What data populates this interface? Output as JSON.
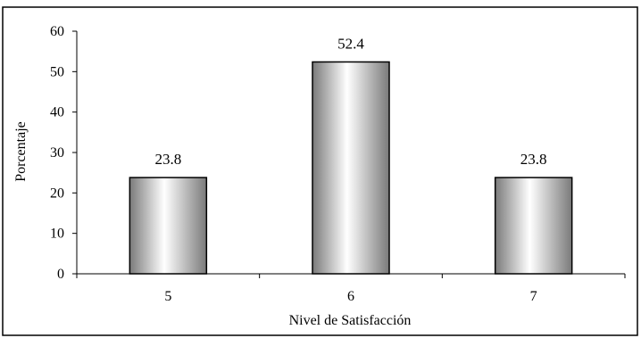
{
  "chart_data": {
    "type": "bar",
    "title": "",
    "xlabel": "Nivel de Satisfacción",
    "ylabel": "Porcentaje",
    "categories": [
      "5",
      "6",
      "7"
    ],
    "values": [
      23.8,
      52.4,
      23.8
    ],
    "value_labels": [
      "23.8",
      "52.4",
      "23.8"
    ],
    "ylim": [
      0,
      60
    ],
    "yticks": [
      0,
      10,
      20,
      30,
      40,
      50,
      60
    ],
    "grid": false,
    "legend": "none",
    "bar_fill": "metallic gray gradient",
    "colors": {
      "bar_dark": "#808080",
      "bar_light": "#ffffff",
      "outline": "#000000"
    }
  }
}
